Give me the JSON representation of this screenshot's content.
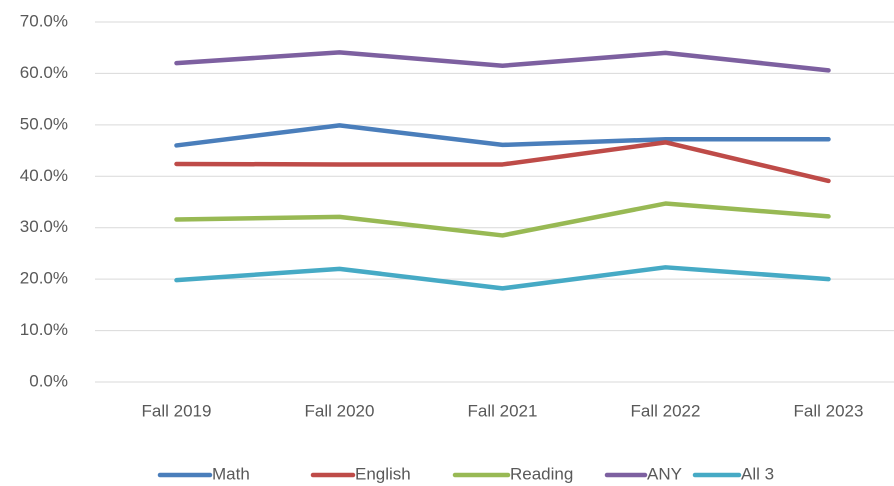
{
  "chart_data": {
    "type": "line",
    "categories": [
      "Fall 2019",
      "Fall 2020",
      "Fall 2021",
      "Fall 2022",
      "Fall 2023"
    ],
    "series": [
      {
        "name": "Math",
        "color": "#4a7ebb",
        "values": [
          46.0,
          49.9,
          46.1,
          47.2,
          47.2
        ]
      },
      {
        "name": "English",
        "color": "#be4b48",
        "values": [
          42.4,
          42.3,
          42.3,
          46.6,
          39.1
        ]
      },
      {
        "name": "Reading",
        "color": "#98b954",
        "values": [
          31.6,
          32.1,
          28.5,
          34.7,
          32.2
        ]
      },
      {
        "name": "ANY",
        "color": "#7d60a0",
        "values": [
          62.0,
          64.1,
          61.5,
          64.0,
          60.6
        ]
      },
      {
        "name": "All 3",
        "color": "#46aac5",
        "values": [
          19.8,
          22.0,
          18.2,
          22.3,
          20.0
        ]
      }
    ],
    "ylim": [
      0,
      70
    ],
    "yticks": [
      {
        "value": 0,
        "label": "0.0%"
      },
      {
        "value": 10,
        "label": "10.0%"
      },
      {
        "value": 20,
        "label": "20.0%"
      },
      {
        "value": 30,
        "label": "30.0%"
      },
      {
        "value": 40,
        "label": "40.0%"
      },
      {
        "value": 50,
        "label": "50.0%"
      },
      {
        "value": 60,
        "label": "60.0%"
      },
      {
        "value": 70,
        "label": "70.0%"
      }
    ],
    "grid": true,
    "legend": "bottom"
  }
}
